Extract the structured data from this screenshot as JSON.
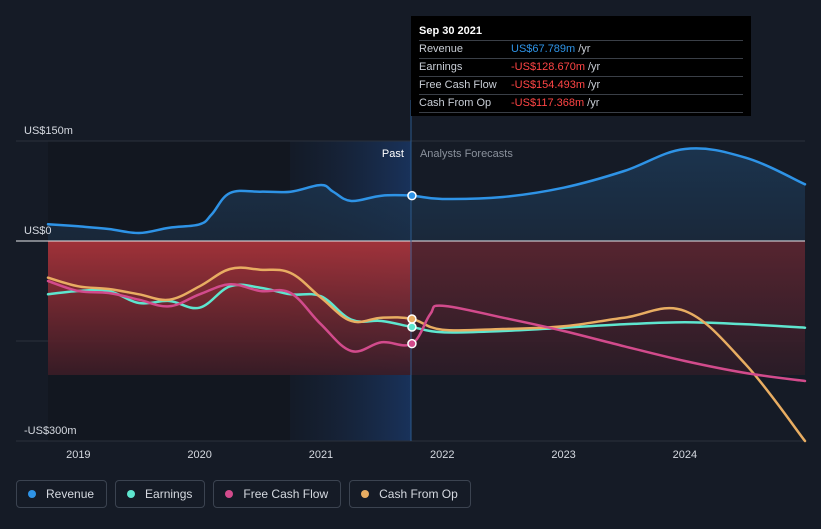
{
  "chart_data": {
    "type": "line",
    "x_range": [
      2018.75,
      2024.99
    ],
    "ylim": [
      -300,
      150
    ],
    "y_unit": "US$ m",
    "y_tick_labels": [
      {
        "value": 150,
        "label": "US$150m"
      },
      {
        "value": 0,
        "label": "US$0"
      },
      {
        "value": -300,
        "label": "-US$300m"
      }
    ],
    "x_ticks": [
      {
        "value": 2019,
        "label": "2019"
      },
      {
        "value": 2020,
        "label": "2020"
      },
      {
        "value": 2021,
        "label": "2021"
      },
      {
        "value": 2022,
        "label": "2022"
      },
      {
        "value": 2023,
        "label": "2023"
      },
      {
        "value": 2024,
        "label": "2024"
      }
    ],
    "past_boundary": 2021.75,
    "past_label": "Past",
    "forecast_label": "Analysts Forecasts",
    "series": [
      {
        "name": "Revenue",
        "color": "#2e93e6",
        "points": [
          [
            2018.75,
            25
          ],
          [
            2019.0,
            22
          ],
          [
            2019.25,
            18
          ],
          [
            2019.5,
            12
          ],
          [
            2019.75,
            20
          ],
          [
            2020.0,
            25
          ],
          [
            2020.1,
            40
          ],
          [
            2020.25,
            72
          ],
          [
            2020.5,
            74
          ],
          [
            2020.75,
            74
          ],
          [
            2021.0,
            84
          ],
          [
            2021.1,
            74
          ],
          [
            2021.25,
            60
          ],
          [
            2021.5,
            68
          ],
          [
            2021.75,
            68
          ],
          [
            2022.0,
            63
          ],
          [
            2022.5,
            66
          ],
          [
            2023.0,
            80
          ],
          [
            2023.5,
            105
          ],
          [
            2024.0,
            138
          ],
          [
            2024.5,
            125
          ],
          [
            2024.99,
            85
          ]
        ]
      },
      {
        "name": "Earnings",
        "color": "#5ee6cf",
        "points": [
          [
            2018.75,
            -80
          ],
          [
            2019.0,
            -75
          ],
          [
            2019.25,
            -75
          ],
          [
            2019.5,
            -93
          ],
          [
            2019.75,
            -90
          ],
          [
            2020.0,
            -100
          ],
          [
            2020.25,
            -68
          ],
          [
            2020.5,
            -70
          ],
          [
            2020.75,
            -80
          ],
          [
            2021.0,
            -83
          ],
          [
            2021.25,
            -118
          ],
          [
            2021.5,
            -120
          ],
          [
            2021.75,
            -129
          ],
          [
            2022.0,
            -137
          ],
          [
            2022.5,
            -135
          ],
          [
            2023.0,
            -130
          ],
          [
            2023.5,
            -125
          ],
          [
            2024.0,
            -122
          ],
          [
            2024.5,
            -125
          ],
          [
            2024.99,
            -130
          ]
        ]
      },
      {
        "name": "Free Cash Flow",
        "color": "#d24b8c",
        "points": [
          [
            2018.75,
            -60
          ],
          [
            2019.0,
            -75
          ],
          [
            2019.25,
            -78
          ],
          [
            2019.5,
            -88
          ],
          [
            2019.75,
            -98
          ],
          [
            2020.0,
            -80
          ],
          [
            2020.25,
            -65
          ],
          [
            2020.5,
            -75
          ],
          [
            2020.75,
            -78
          ],
          [
            2021.0,
            -125
          ],
          [
            2021.25,
            -165
          ],
          [
            2021.5,
            -152
          ],
          [
            2021.75,
            -154
          ],
          [
            2021.9,
            -110
          ],
          [
            2022.0,
            -97
          ],
          [
            2022.5,
            -115
          ],
          [
            2023.0,
            -135
          ],
          [
            2023.5,
            -158
          ],
          [
            2024.0,
            -180
          ],
          [
            2024.5,
            -198
          ],
          [
            2024.99,
            -210
          ]
        ]
      },
      {
        "name": "Cash From Op",
        "color": "#e8ad62",
        "points": [
          [
            2018.75,
            -55
          ],
          [
            2019.0,
            -68
          ],
          [
            2019.25,
            -72
          ],
          [
            2019.5,
            -80
          ],
          [
            2019.75,
            -88
          ],
          [
            2020.0,
            -68
          ],
          [
            2020.25,
            -42
          ],
          [
            2020.5,
            -43
          ],
          [
            2020.75,
            -48
          ],
          [
            2021.0,
            -85
          ],
          [
            2021.25,
            -120
          ],
          [
            2021.5,
            -115
          ],
          [
            2021.75,
            -117
          ],
          [
            2022.0,
            -133
          ],
          [
            2022.5,
            -132
          ],
          [
            2023.0,
            -128
          ],
          [
            2023.5,
            -115
          ],
          [
            2024.0,
            -105
          ],
          [
            2024.5,
            -185
          ],
          [
            2024.99,
            -300
          ]
        ]
      }
    ]
  },
  "tooltip": {
    "date": "Sep 30 2021",
    "rows": [
      {
        "label": "Revenue",
        "value": "US$67.789m",
        "unit": "/yr",
        "color": "#2e93e6"
      },
      {
        "label": "Earnings",
        "value": "-US$128.670m",
        "unit": "/yr",
        "color": "#ff4545"
      },
      {
        "label": "Free Cash Flow",
        "value": "-US$154.493m",
        "unit": "/yr",
        "color": "#ff4545"
      },
      {
        "label": "Cash From Op",
        "value": "-US$117.368m",
        "unit": "/yr",
        "color": "#ff4545"
      }
    ]
  },
  "legend": [
    {
      "label": "Revenue",
      "color": "#2e93e6"
    },
    {
      "label": "Earnings",
      "color": "#5ee6cf"
    },
    {
      "label": "Free Cash Flow",
      "color": "#d24b8c"
    },
    {
      "label": "Cash From Op",
      "color": "#e8ad62"
    }
  ]
}
